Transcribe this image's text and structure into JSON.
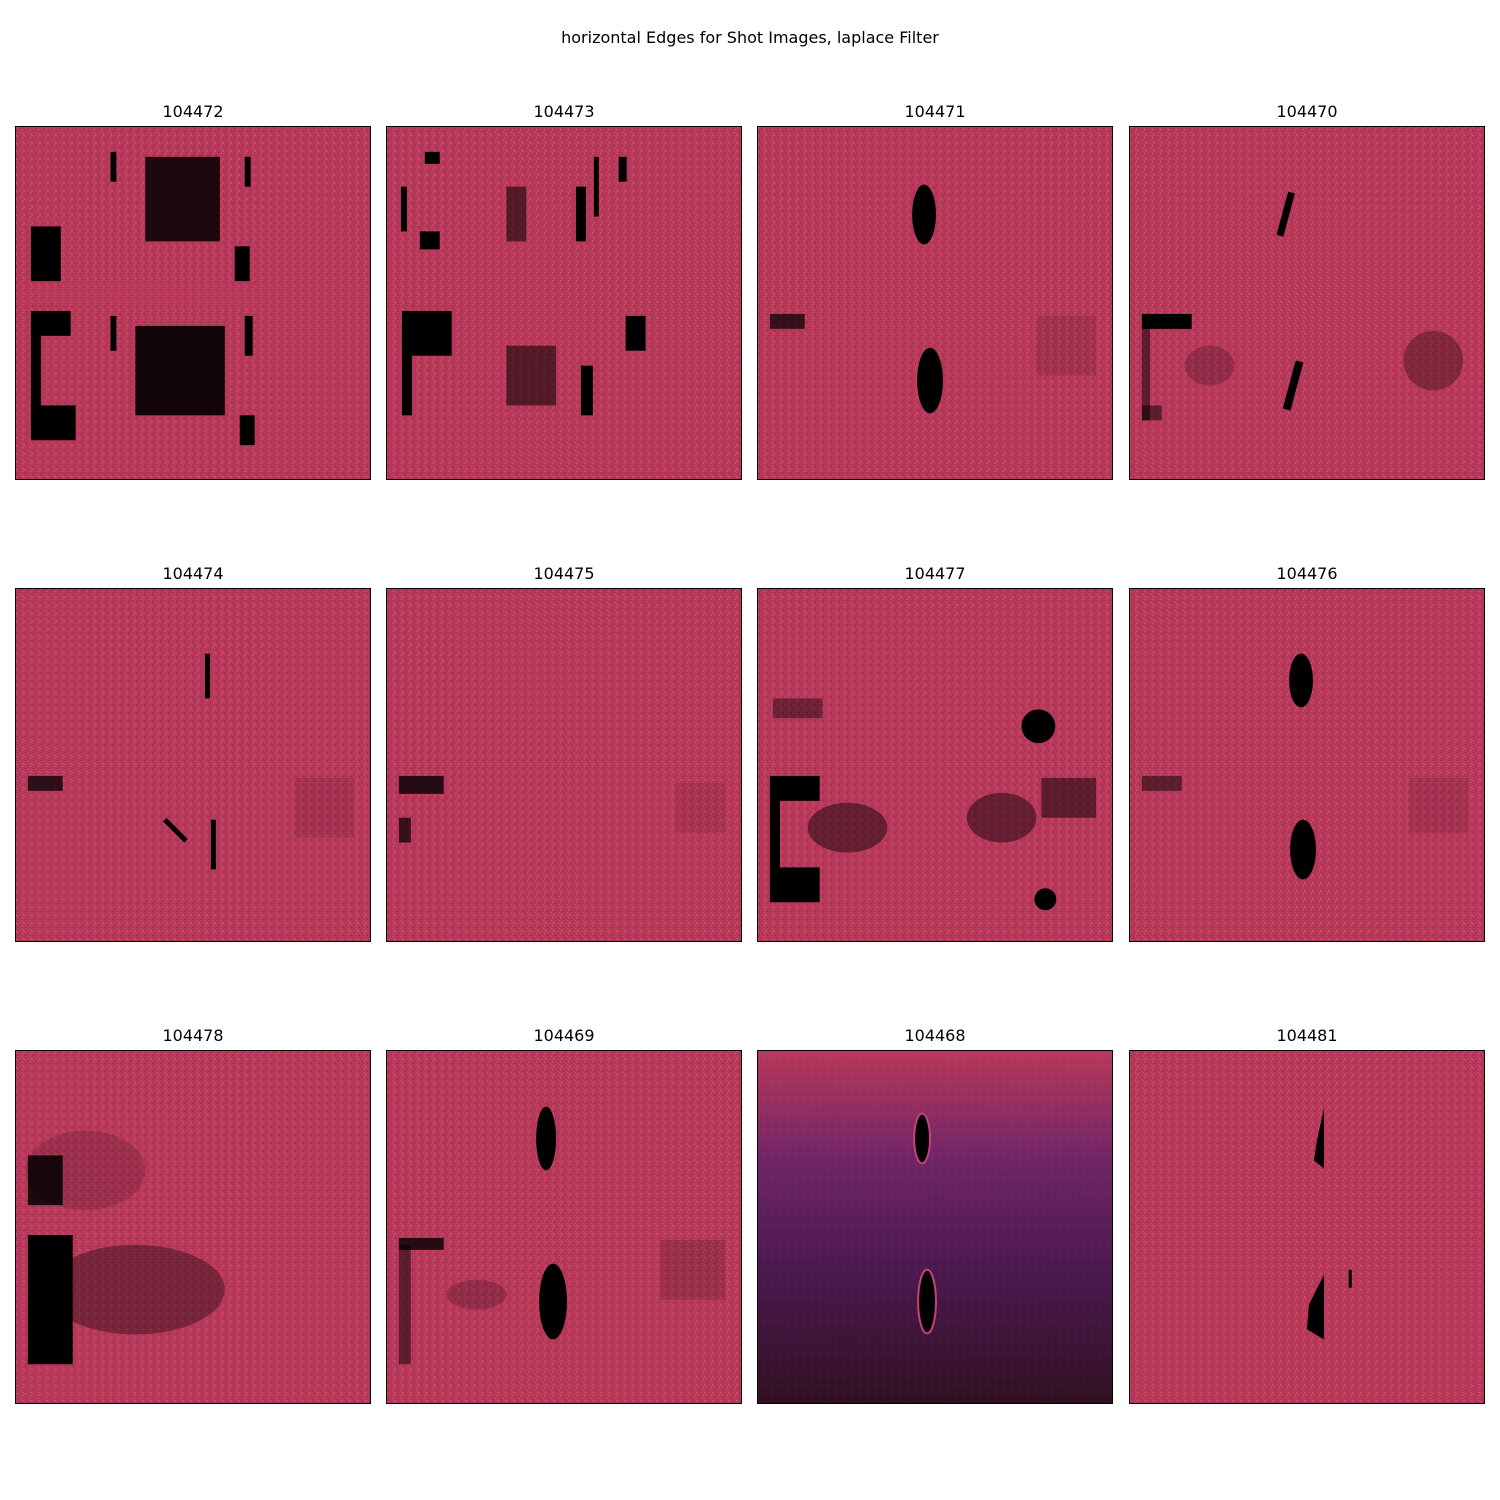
{
  "figure": {
    "suptitle": "horizontal Edges for Shot Images, laplace Filter",
    "colormap": {
      "background": "#b8385a",
      "mid": "#7a2469",
      "dark": "#000000"
    },
    "panels": [
      {
        "title": "104472"
      },
      {
        "title": "104473"
      },
      {
        "title": "104471"
      },
      {
        "title": "104470"
      },
      {
        "title": "104474"
      },
      {
        "title": "104475"
      },
      {
        "title": "104477"
      },
      {
        "title": "104476"
      },
      {
        "title": "104478"
      },
      {
        "title": "104469"
      },
      {
        "title": "104468"
      },
      {
        "title": "104481"
      }
    ]
  }
}
